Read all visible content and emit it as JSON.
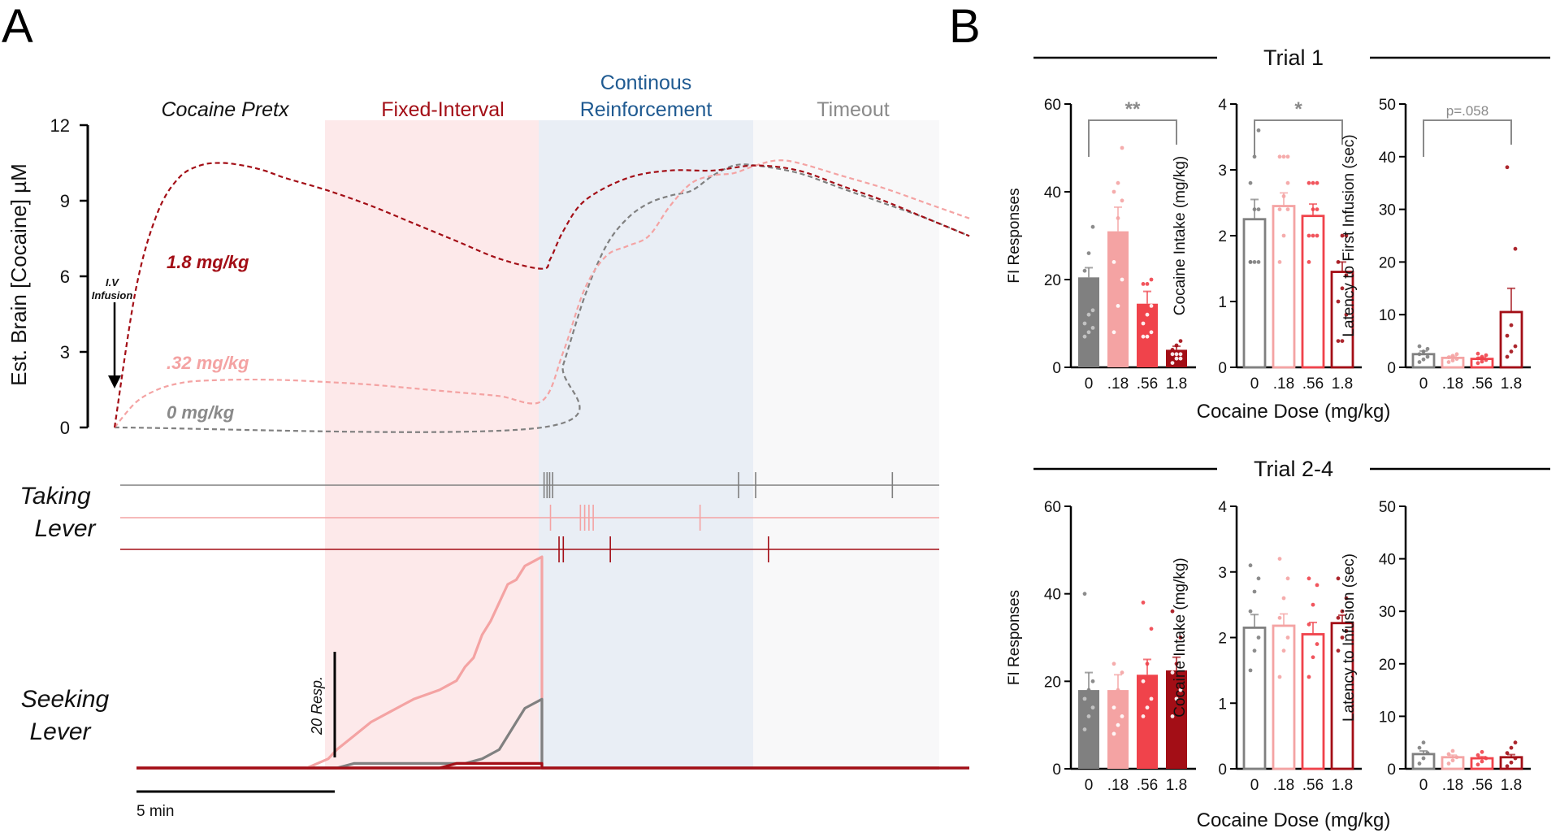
{
  "figure": {
    "panel_a_letter": "A",
    "panel_b_letter": "B"
  },
  "colors": {
    "dose_0": "#808080",
    "dose_018": "#f4a3a3",
    "dose_032": "#f4a3a3",
    "dose_056": "#f0434b",
    "dose_18": "#a30e16",
    "fi_region": "#fde9ea",
    "crf_region": "#e9eef5",
    "timeout_region": "#f8f8f9",
    "crf_label": "#1f5a91",
    "fi_label": "#a30e16",
    "timeout_label": "#8a8a8a"
  },
  "chart_data": [
    {
      "id": "panelA-concentration",
      "type": "line",
      "ylabel": "Est. Brain [Cocaine] µM",
      "ylim": [
        0,
        12
      ],
      "yticks": [
        "0",
        "3",
        "6",
        "9",
        "12"
      ],
      "xlim_min": [
        0,
        20
      ],
      "phases": [
        {
          "label": "Cocaine Pretx",
          "start_min": 0,
          "end_min": 5
        },
        {
          "label": "Fixed-Interval",
          "start_min": 5,
          "end_min": 10
        },
        {
          "label_line1": "Continous",
          "label_line2": "Reinforcement",
          "start_min": 10,
          "end_min": 15
        },
        {
          "label": "Timeout",
          "start_min": 15,
          "end_min": 20
        }
      ],
      "annotation": {
        "line1": "I.V",
        "line2": "Infusion"
      },
      "series": [
        {
          "name": "1.8 mg/kg",
          "color": "#a30e16",
          "x": [
            0,
            0.5,
            1,
            1.5,
            2,
            2.5,
            3,
            3.5,
            4,
            5,
            6,
            7,
            8,
            9,
            10,
            10.2,
            10.5,
            11,
            12,
            13,
            14,
            15,
            16,
            17,
            18,
            19,
            20
          ],
          "y": [
            0,
            5.5,
            8.5,
            9.9,
            10.4,
            10.5,
            10.4,
            10.2,
            9.9,
            9.4,
            8.8,
            8.1,
            7.4,
            6.7,
            6.3,
            6.7,
            7.8,
            9.0,
            9.9,
            10.2,
            10.2,
            10.4,
            10.2,
            9.6,
            9.0,
            8.3,
            7.6
          ]
        },
        {
          "name": ".32 mg/kg",
          "color": "#f4a3a3",
          "x": [
            0,
            0.5,
            1,
            1.5,
            2,
            3,
            4,
            5,
            6,
            7,
            8,
            9,
            10,
            10.5,
            11,
            11.5,
            12,
            12.5,
            13,
            13.5,
            14,
            14.5,
            15,
            15.5,
            16,
            17,
            18,
            19,
            20
          ],
          "y": [
            0,
            1.0,
            1.5,
            1.75,
            1.85,
            1.9,
            1.88,
            1.8,
            1.7,
            1.55,
            1.4,
            1.25,
            1.05,
            3.0,
            5.5,
            6.8,
            7.2,
            7.6,
            8.8,
            9.7,
            10.0,
            10.1,
            10.4,
            10.6,
            10.5,
            10.0,
            9.5,
            8.9,
            8.3
          ]
        },
        {
          "name": "0 mg/kg",
          "color": "#808080",
          "x": [
            0,
            10,
            10.5,
            11,
            11.5,
            12,
            12.5,
            13,
            13.5,
            14,
            14.5,
            15,
            16,
            17,
            18,
            19,
            20
          ],
          "y": [
            0,
            0,
            2.5,
            5.2,
            7.2,
            8.3,
            8.9,
            9.2,
            9.4,
            10.0,
            10.4,
            10.4,
            10.1,
            9.5,
            8.9,
            8.3,
            7.6
          ]
        }
      ]
    },
    {
      "id": "panelA-taking-lever",
      "type": "event-raster",
      "label_line1": "Taking",
      "label_line2": "Lever",
      "series": [
        {
          "name": "0 mg/kg",
          "color": "#808080",
          "events_min": [
            10.05,
            10.12,
            10.18,
            10.25,
            14.6,
            15.0,
            18.2
          ]
        },
        {
          "name": ".32 mg/kg",
          "color": "#f4a3a3",
          "events_min": [
            10.2,
            10.9,
            11.0,
            11.1,
            11.2,
            13.7
          ]
        },
        {
          "name": "1.8 mg/kg",
          "color": "#a30e16",
          "events_min": [
            10.4,
            10.5,
            11.6,
            15.3
          ]
        }
      ]
    },
    {
      "id": "panelA-seeking-lever",
      "type": "cumulative-record",
      "label_line1": "Seeking",
      "label_line2": "Lever",
      "scale_bar_y": "20 Resp.",
      "scale_bar_x": "5 min",
      "series": [
        {
          "name": ".32 mg/kg",
          "color": "#f4a3a3",
          "x": [
            4.5,
            5.0,
            5.2,
            5.6,
            6.0,
            6.4,
            6.8,
            7.0,
            7.3,
            7.6,
            7.8,
            8.0,
            8.2,
            8.4,
            8.6,
            8.8,
            9.0,
            9.2,
            9.4,
            9.6,
            9.8,
            10.0,
            10.0,
            20
          ],
          "y": [
            0,
            2,
            4,
            7,
            10,
            12,
            14,
            15,
            16,
            17,
            18,
            19,
            22,
            24,
            29,
            32,
            36,
            40,
            41,
            44,
            45,
            46,
            0,
            0
          ]
        },
        {
          "name": "0 mg/kg",
          "color": "#808080",
          "x": [
            4.5,
            5.2,
            5.6,
            8.2,
            8.6,
            9.0,
            9.2,
            9.4,
            9.6,
            9.8,
            10.0,
            10.0,
            20
          ],
          "y": [
            0,
            0,
            1,
            1,
            2,
            4,
            7,
            10,
            13,
            14,
            15,
            0,
            0
          ]
        },
        {
          "name": "1.8 mg/kg",
          "color": "#a30e16",
          "x": [
            0,
            7.6,
            8.0,
            10.0,
            10.0,
            20
          ],
          "y": [
            0,
            0,
            1,
            1,
            0,
            0
          ]
        }
      ]
    },
    {
      "id": "panelB-groups",
      "type": "bar",
      "xlabel": "Cocaine Dose (mg/kg)",
      "categories": [
        "0",
        ".18",
        ".56",
        "1.8"
      ],
      "colors": [
        "#808080",
        "#f4a3a3",
        "#f0434b",
        "#a30e16"
      ],
      "trials": [
        {
          "title": "Trial 1",
          "panels": [
            {
              "ylabel": "FI Responses",
              "ylim": [
                0,
                60
              ],
              "yticks": [
                "0",
                "20",
                "40",
                "60"
              ],
              "means": [
                20.5,
                31,
                14.5,
                4
              ],
              "sem": [
                2.2,
                5.5,
                2.8,
                0.8
              ],
              "filled": true,
              "points": [
                [
                  7,
                  8,
                  9,
                  10,
                  12,
                  13,
                  22,
                  26,
                  32
                ],
                [
                  8,
                  14,
                  20,
                  24,
                  34,
                  38,
                  40,
                  42,
                  50
                ],
                [
                  7,
                  7,
                  8,
                  10,
                  12,
                  14,
                  19,
                  19,
                  20
                ],
                [
                  1,
                  2,
                  2,
                  3,
                  3,
                  3,
                  4,
                  5,
                  6
                ]
              ],
              "sig_label": "**",
              "sig_from": 0,
              "sig_to": 3
            },
            {
              "ylabel": "Cocaine Intake (mg/kg)",
              "ylim": [
                0,
                4
              ],
              "yticks": [
                "0",
                "1",
                "2",
                "3",
                "4"
              ],
              "means": [
                2.25,
                2.45,
                2.3,
                1.45
              ],
              "sem": [
                0.3,
                0.2,
                0.18,
                0.15
              ],
              "filled": false,
              "points": [
                [
                  1.6,
                  1.6,
                  1.6,
                  1.6,
                  2.4,
                  2.4,
                  2.8,
                  3.2,
                  3.6
                ],
                [
                  1.6,
                  2.0,
                  2.4,
                  2.4,
                  2.6,
                  2.8,
                  3.2,
                  3.2,
                  3.2
                ],
                [
                  1.6,
                  2.0,
                  2.0,
                  2.0,
                  2.4,
                  2.4,
                  2.8,
                  2.8,
                  2.8
                ],
                [
                  0.4,
                  0.4,
                  0.8,
                  1.0,
                  1.2,
                  1.4,
                  1.6,
                  2.0,
                  2.0
                ]
              ],
              "sig_label": "*",
              "sig_from": 0,
              "sig_to": 3
            },
            {
              "ylabel": "Latency to First Infusion (sec)",
              "ylim": [
                0,
                50
              ],
              "yticks": [
                "0",
                "10",
                "20",
                "30",
                "40",
                "50"
              ],
              "means": [
                2.5,
                1.8,
                1.6,
                10.5
              ],
              "sem": [
                0.6,
                0.3,
                0.3,
                4.5
              ],
              "filled": false,
              "points": [
                [
                  1,
                  1.5,
                  2,
                  2.5,
                  3,
                  3.5,
                  4
                ],
                [
                  1,
                  1.3,
                  1.6,
                  1.9,
                  2.2,
                  2.5
                ],
                [
                  0.8,
                  1.1,
                  1.4,
                  1.7,
                  2.0,
                  2.3,
                  2.6
                ],
                [
                  2,
                  3,
                  4,
                  6,
                  8,
                  22.5,
                  38
                ]
              ],
              "sig_label": "p=.058",
              "sig_from": 0,
              "sig_to": 3
            }
          ]
        },
        {
          "title": "Trial 2-4",
          "panels": [
            {
              "ylabel": "FI Responses",
              "ylim": [
                0,
                60
              ],
              "yticks": [
                "0",
                "20",
                "40",
                "60"
              ],
              "means": [
                18,
                18,
                21.5,
                22.5
              ],
              "sem": [
                4,
                3.5,
                3.5,
                3
              ],
              "filled": true,
              "points": [
                [
                  9,
                  12,
                  14,
                  16,
                  18,
                  20,
                  40
                ],
                [
                  8,
                  10,
                  12,
                  14,
                  18,
                  22,
                  24
                ],
                [
                  12,
                  14,
                  16,
                  20,
                  24,
                  32,
                  38
                ],
                [
                  12,
                  16,
                  18,
                  22,
                  24,
                  30,
                  36
                ]
              ]
            },
            {
              "ylabel": "Cocaine Intake (mg/kg)",
              "ylim": [
                0,
                4
              ],
              "yticks": [
                "0",
                "1",
                "2",
                "3",
                "4"
              ],
              "means": [
                2.15,
                2.18,
                2.05,
                2.22
              ],
              "sem": [
                0.2,
                0.18,
                0.18,
                0.12
              ],
              "filled": false,
              "points": [
                [
                  1.5,
                  1.8,
                  2.0,
                  2.4,
                  2.7,
                  2.9,
                  3.1
                ],
                [
                  1.4,
                  1.8,
                  2.0,
                  2.3,
                  2.6,
                  2.9,
                  3.2
                ],
                [
                  1.4,
                  1.7,
                  1.9,
                  2.2,
                  2.5,
                  2.8,
                  2.9
                ],
                [
                  1.8,
                  2.0,
                  2.1,
                  2.3,
                  2.4,
                  2.6,
                  2.9
                ]
              ]
            },
            {
              "ylabel": "Latency to Infusion (sec)",
              "ylim": [
                0,
                50
              ],
              "yticks": [
                "0",
                "10",
                "20",
                "30",
                "40",
                "50"
              ],
              "means": [
                2.8,
                2.2,
                2.0,
                2.2
              ],
              "sem": [
                0.6,
                0.4,
                0.3,
                0.5
              ],
              "filled": false,
              "points": [
                [
                  1,
                  2,
                  3,
                  4,
                  5
                ],
                [
                  1,
                  1.6,
                  2.2,
                  2.8,
                  3.4
                ],
                [
                  0.8,
                  1.4,
                  2,
                  2.6,
                  3.2
                ],
                [
                  0.5,
                  1.2,
                  2,
                  3,
                  4,
                  5
                ]
              ]
            }
          ]
        }
      ]
    }
  ]
}
